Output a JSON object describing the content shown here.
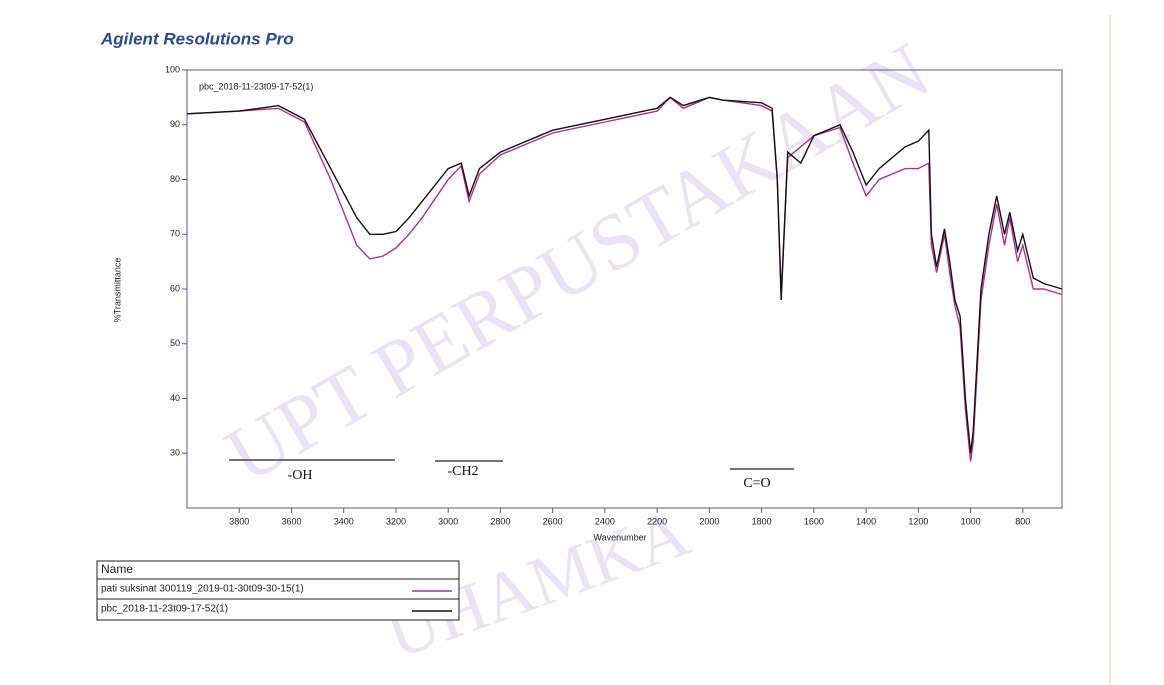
{
  "title": "Agilent Resolutions Pro",
  "watermark": {
    "top": "UPT PERPUSTAKAAN",
    "bottom": "UHAMKA"
  },
  "chart_data": {
    "type": "line",
    "plot_label": "pbc_2018-11-23t09-17-52(1)",
    "x_label": "Wavenumber",
    "y_label": "%Transmittance",
    "xlim": [
      4000,
      650
    ],
    "ylim": [
      20,
      100
    ],
    "xticks": [
      3800,
      3600,
      3400,
      3200,
      3000,
      2800,
      2600,
      2400,
      2200,
      2000,
      1800,
      1600,
      1400,
      1200,
      1000,
      800
    ],
    "yticks": [
      30,
      40,
      50,
      60,
      70,
      80,
      90,
      100
    ],
    "x": [
      4000,
      3800,
      3650,
      3550,
      3450,
      3350,
      3300,
      3250,
      3200,
      3150,
      3100,
      3000,
      2950,
      2920,
      2880,
      2800,
      2600,
      2400,
      2200,
      2150,
      2100,
      2000,
      1950,
      1800,
      1760,
      1740,
      1725,
      1700,
      1650,
      1600,
      1500,
      1450,
      1400,
      1350,
      1300,
      1250,
      1200,
      1160,
      1150,
      1130,
      1100,
      1080,
      1060,
      1040,
      1020,
      1000,
      990,
      960,
      930,
      900,
      870,
      850,
      820,
      800,
      760,
      720,
      650
    ],
    "series": [
      {
        "name": "pati suksinat 300119_2019-01-30t09-30-15(1)",
        "color": "#b0308f",
        "values": [
          92,
          92.5,
          93,
          90.5,
          80,
          68,
          65.5,
          66,
          67.5,
          70,
          73,
          80,
          82.5,
          76,
          81,
          84.5,
          88.5,
          90.5,
          92.5,
          95,
          93,
          95,
          94.5,
          93.5,
          92.5,
          80,
          59,
          84,
          86,
          88,
          89.5,
          83,
          77,
          80,
          81,
          82,
          82,
          83,
          68,
          63,
          70,
          63,
          57,
          53,
          38,
          28.5,
          32,
          58,
          68,
          75.5,
          68,
          73,
          65,
          68,
          60,
          60,
          59
        ]
      },
      {
        "name": "pbc_2018-11-23t09-17-52(1)",
        "color": "#111111",
        "values": [
          92,
          92.5,
          93.5,
          91,
          82,
          73,
          70,
          70,
          70.5,
          73,
          76,
          82,
          83,
          77,
          82,
          85,
          89,
          91,
          93,
          95,
          93.5,
          95,
          94.5,
          94,
          93,
          80,
          58,
          85,
          83,
          88,
          90,
          85,
          79,
          82,
          84,
          86,
          87,
          89,
          70,
          64,
          71,
          65,
          58,
          55,
          40,
          30,
          34,
          60,
          70,
          77,
          70,
          74,
          67,
          70,
          62,
          61,
          60
        ]
      }
    ],
    "annotations": [
      "-OH",
      "-CH2",
      "C=O"
    ],
    "legend_title": "Name"
  }
}
